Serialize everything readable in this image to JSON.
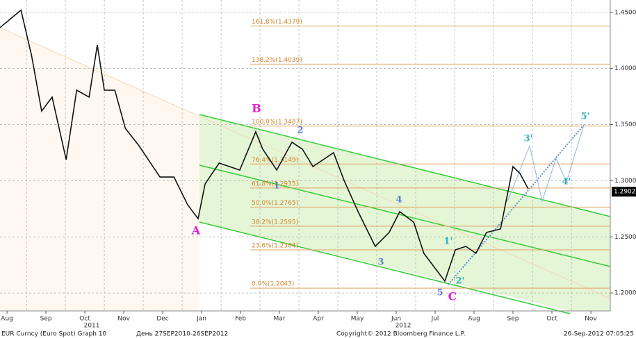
{
  "chart_data": {
    "type": "line",
    "series": [
      {
        "name": "EUR Curncy",
        "color": "#111111",
        "x": [
          -0.18,
          0.36,
          0.63,
          0.89,
          1.16,
          1.52,
          1.79,
          2.11,
          2.32,
          2.5,
          2.77,
          3.04,
          3.39,
          3.93,
          4.29,
          4.64,
          4.91,
          5.09,
          5.45,
          5.98,
          6.39,
          6.57,
          6.93,
          7.32,
          7.59,
          7.86,
          8.39,
          8.66,
          9.02,
          9.46,
          9.82,
          10.09,
          10.45,
          10.71,
          10.98,
          11.25,
          11.52,
          11.79,
          12.05,
          12.32,
          12.68,
          13.0,
          13.18,
          13.39
        ],
        "values": [
          1.4364,
          1.452,
          1.4116,
          1.362,
          1.3745,
          1.3188,
          1.3807,
          1.3745,
          1.4209,
          1.3807,
          1.3807,
          1.3467,
          1.3312,
          1.3033,
          1.3033,
          1.2786,
          1.2662,
          1.2972,
          1.3157,
          1.3095,
          1.3436,
          1.3281,
          1.3095,
          1.3343,
          1.3281,
          1.3126,
          1.325,
          1.3003,
          1.2724,
          1.2415,
          1.2539,
          1.2724,
          1.2631,
          1.2353,
          1.2229,
          1.2105,
          1.2384,
          1.2415,
          1.2353,
          1.2539,
          1.257,
          1.3126,
          1.3064,
          1.2928
        ]
      }
    ],
    "xlim": [
      -0.18,
      15.5
    ],
    "ylim": [
      1.184,
      1.461
    ],
    "xticks": [
      {
        "value": 0,
        "label": "Aug"
      },
      {
        "value": 1,
        "label": "Sep"
      },
      {
        "value": 2,
        "label": "Oct"
      },
      {
        "value": 3,
        "label": "Nov"
      },
      {
        "value": 4,
        "label": "Dec"
      },
      {
        "value": 5,
        "label": "Jan"
      },
      {
        "value": 6,
        "label": "Feb"
      },
      {
        "value": 7,
        "label": "Mar"
      },
      {
        "value": 8,
        "label": "Apr"
      },
      {
        "value": 9,
        "label": "May"
      },
      {
        "value": 10,
        "label": "Jun"
      },
      {
        "value": 11,
        "label": "Jul"
      },
      {
        "value": 12,
        "label": "Aug"
      },
      {
        "value": 13,
        "label": "Sep"
      },
      {
        "value": 14,
        "label": "Oct"
      },
      {
        "value": 15,
        "label": "Nov"
      }
    ],
    "year_labels": [
      "2011",
      "2012"
    ],
    "yticks": [
      {
        "value": 1.2,
        "label": "1.2000"
      },
      {
        "value": 1.25,
        "label": "1.2500"
      },
      {
        "value": 1.3,
        "label": "1.3000"
      },
      {
        "value": 1.35,
        "label": "1.3500"
      },
      {
        "value": 1.4,
        "label": "1.4000"
      },
      {
        "value": 1.45,
        "label": "1.4500"
      }
    ],
    "grid": true,
    "last_price": 1.2902,
    "fib_levels": [
      {
        "value": 1.4379,
        "label": "161.8%(1.4379)"
      },
      {
        "value": 1.4039,
        "label": "138.2%(1.4039)"
      },
      {
        "value": 1.3487,
        "label": "100.0%(1.3487)"
      },
      {
        "value": 1.3149,
        "label": "76.4%(1.3149)"
      },
      {
        "value": 1.2935,
        "label": "61.8%(1.2935)"
      },
      {
        "value": 1.2765,
        "label": "50.0%(1.2765)"
      },
      {
        "value": 1.2595,
        "label": "38.2%(1.2595)"
      },
      {
        "value": 1.2384,
        "label": "23.6%(1.2384)"
      },
      {
        "value": 1.2043,
        "label": "0.0%(1.2043)"
      }
    ],
    "wave_labels": [
      "A",
      "B",
      "C",
      "1",
      "2",
      "3",
      "4",
      "5",
      "1'",
      "2'",
      "3'",
      "4'",
      "5'"
    ],
    "footer": {
      "security": "EUR Curncy (Euro Spot) Graph 10",
      "period": "День 27SEP2010-26SEP2012",
      "copyright": "Copyright© 2012 Bloomberg Finance L.P.",
      "timestamp": "26-Sep-2012 07:05:25"
    }
  }
}
